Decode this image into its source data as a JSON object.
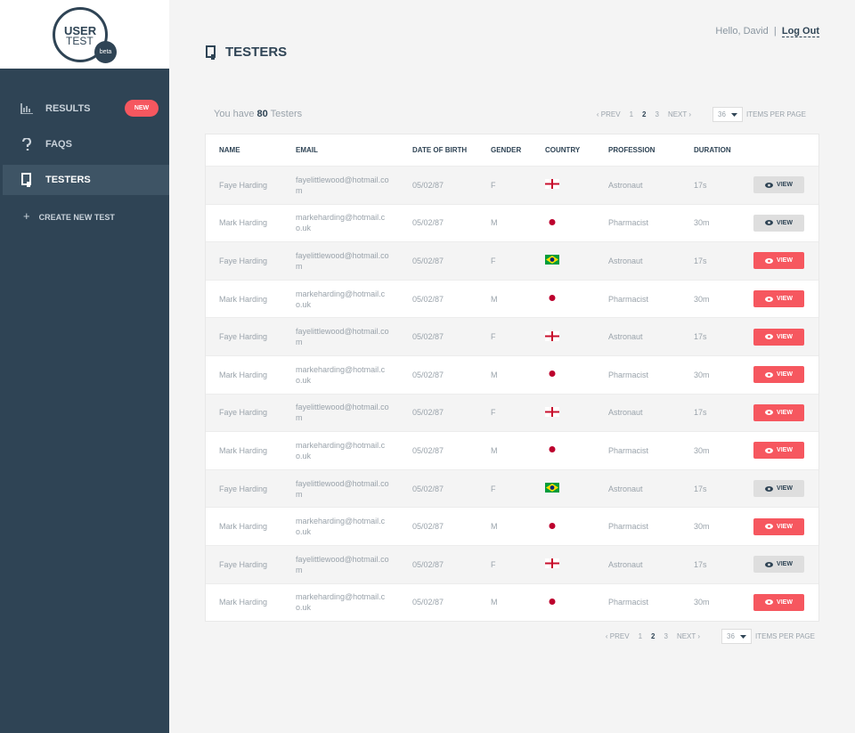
{
  "logo": {
    "line1": "USER",
    "line2": "TEST",
    "badge": "beta"
  },
  "nav": {
    "items": [
      {
        "label": "RESULTS",
        "badge": "NEW",
        "icon": "chart",
        "active": false
      },
      {
        "label": "FAQS",
        "icon": "question",
        "active": false
      },
      {
        "label": "TESTERS",
        "icon": "device",
        "active": true
      }
    ],
    "create": {
      "icon": "+",
      "label": "CREATE NEW TEST"
    }
  },
  "header": {
    "greeting": "Hello, David",
    "separator": "|",
    "logout": "Log Out",
    "title": "TESTERS"
  },
  "summary": {
    "prefix": "You have",
    "count": 80,
    "suffix": "Testers"
  },
  "pagination": {
    "prev": "‹ PREV",
    "pages": [
      1,
      2,
      3
    ],
    "current": 2,
    "next": "NEXT ›",
    "per_page": 36,
    "per_page_label": "ITEMS PER PAGE"
  },
  "table": {
    "columns": [
      "NAME",
      "EMAIL",
      "DATE OF BIRTH",
      "GENDER",
      "COUNTRY",
      "PROFESSION",
      "DURATION"
    ],
    "rows": [
      {
        "name": "Faye Harding",
        "email": "fayelittlewood@hotmail.com",
        "dob": "05/02/87",
        "gender": "F",
        "flag": "england",
        "profession": "Astronaut",
        "duration": "17s",
        "action": "VIEW",
        "action_style": "muted"
      },
      {
        "name": "Mark Harding",
        "email": "markeharding@hotmail.co.uk",
        "dob": "05/02/87",
        "gender": "M",
        "flag": "japan",
        "profession": "Pharmacist",
        "duration": "30m",
        "action": "VIEW",
        "action_style": "muted"
      },
      {
        "name": "Faye Harding",
        "email": "fayelittlewood@hotmail.com",
        "dob": "05/02/87",
        "gender": "F",
        "flag": "brazil",
        "profession": "Astronaut",
        "duration": "17s",
        "action": "VIEW",
        "action_style": "primary"
      },
      {
        "name": "Mark Harding",
        "email": "markeharding@hotmail.co.uk",
        "dob": "05/02/87",
        "gender": "M",
        "flag": "japan",
        "profession": "Pharmacist",
        "duration": "30m",
        "action": "VIEW",
        "action_style": "primary"
      },
      {
        "name": "Faye Harding",
        "email": "fayelittlewood@hotmail.com",
        "dob": "05/02/87",
        "gender": "F",
        "flag": "england",
        "profession": "Astronaut",
        "duration": "17s",
        "action": "VIEW",
        "action_style": "primary"
      },
      {
        "name": "Mark Harding",
        "email": "markeharding@hotmail.co.uk",
        "dob": "05/02/87",
        "gender": "M",
        "flag": "japan",
        "profession": "Pharmacist",
        "duration": "30m",
        "action": "VIEW",
        "action_style": "primary"
      },
      {
        "name": "Faye Harding",
        "email": "fayelittlewood@hotmail.com",
        "dob": "05/02/87",
        "gender": "F",
        "flag": "england",
        "profession": "Astronaut",
        "duration": "17s",
        "action": "VIEW",
        "action_style": "primary"
      },
      {
        "name": "Mark Harding",
        "email": "markeharding@hotmail.co.uk",
        "dob": "05/02/87",
        "gender": "M",
        "flag": "japan",
        "profession": "Pharmacist",
        "duration": "30m",
        "action": "VIEW",
        "action_style": "primary"
      },
      {
        "name": "Faye Harding",
        "email": "fayelittlewood@hotmail.com",
        "dob": "05/02/87",
        "gender": "F",
        "flag": "brazil",
        "profession": "Astronaut",
        "duration": "17s",
        "action": "VIEW",
        "action_style": "muted"
      },
      {
        "name": "Mark Harding",
        "email": "markeharding@hotmail.co.uk",
        "dob": "05/02/87",
        "gender": "M",
        "flag": "japan",
        "profession": "Pharmacist",
        "duration": "30m",
        "action": "VIEW",
        "action_style": "primary"
      },
      {
        "name": "Faye Harding",
        "email": "fayelittlewood@hotmail.com",
        "dob": "05/02/87",
        "gender": "F",
        "flag": "england",
        "profession": "Astronaut",
        "duration": "17s",
        "action": "VIEW",
        "action_style": "muted"
      },
      {
        "name": "Mark Harding",
        "email": "markeharding@hotmail.co.uk",
        "dob": "05/02/87",
        "gender": "M",
        "flag": "japan",
        "profession": "Pharmacist",
        "duration": "30m",
        "action": "VIEW",
        "action_style": "primary"
      }
    ]
  }
}
